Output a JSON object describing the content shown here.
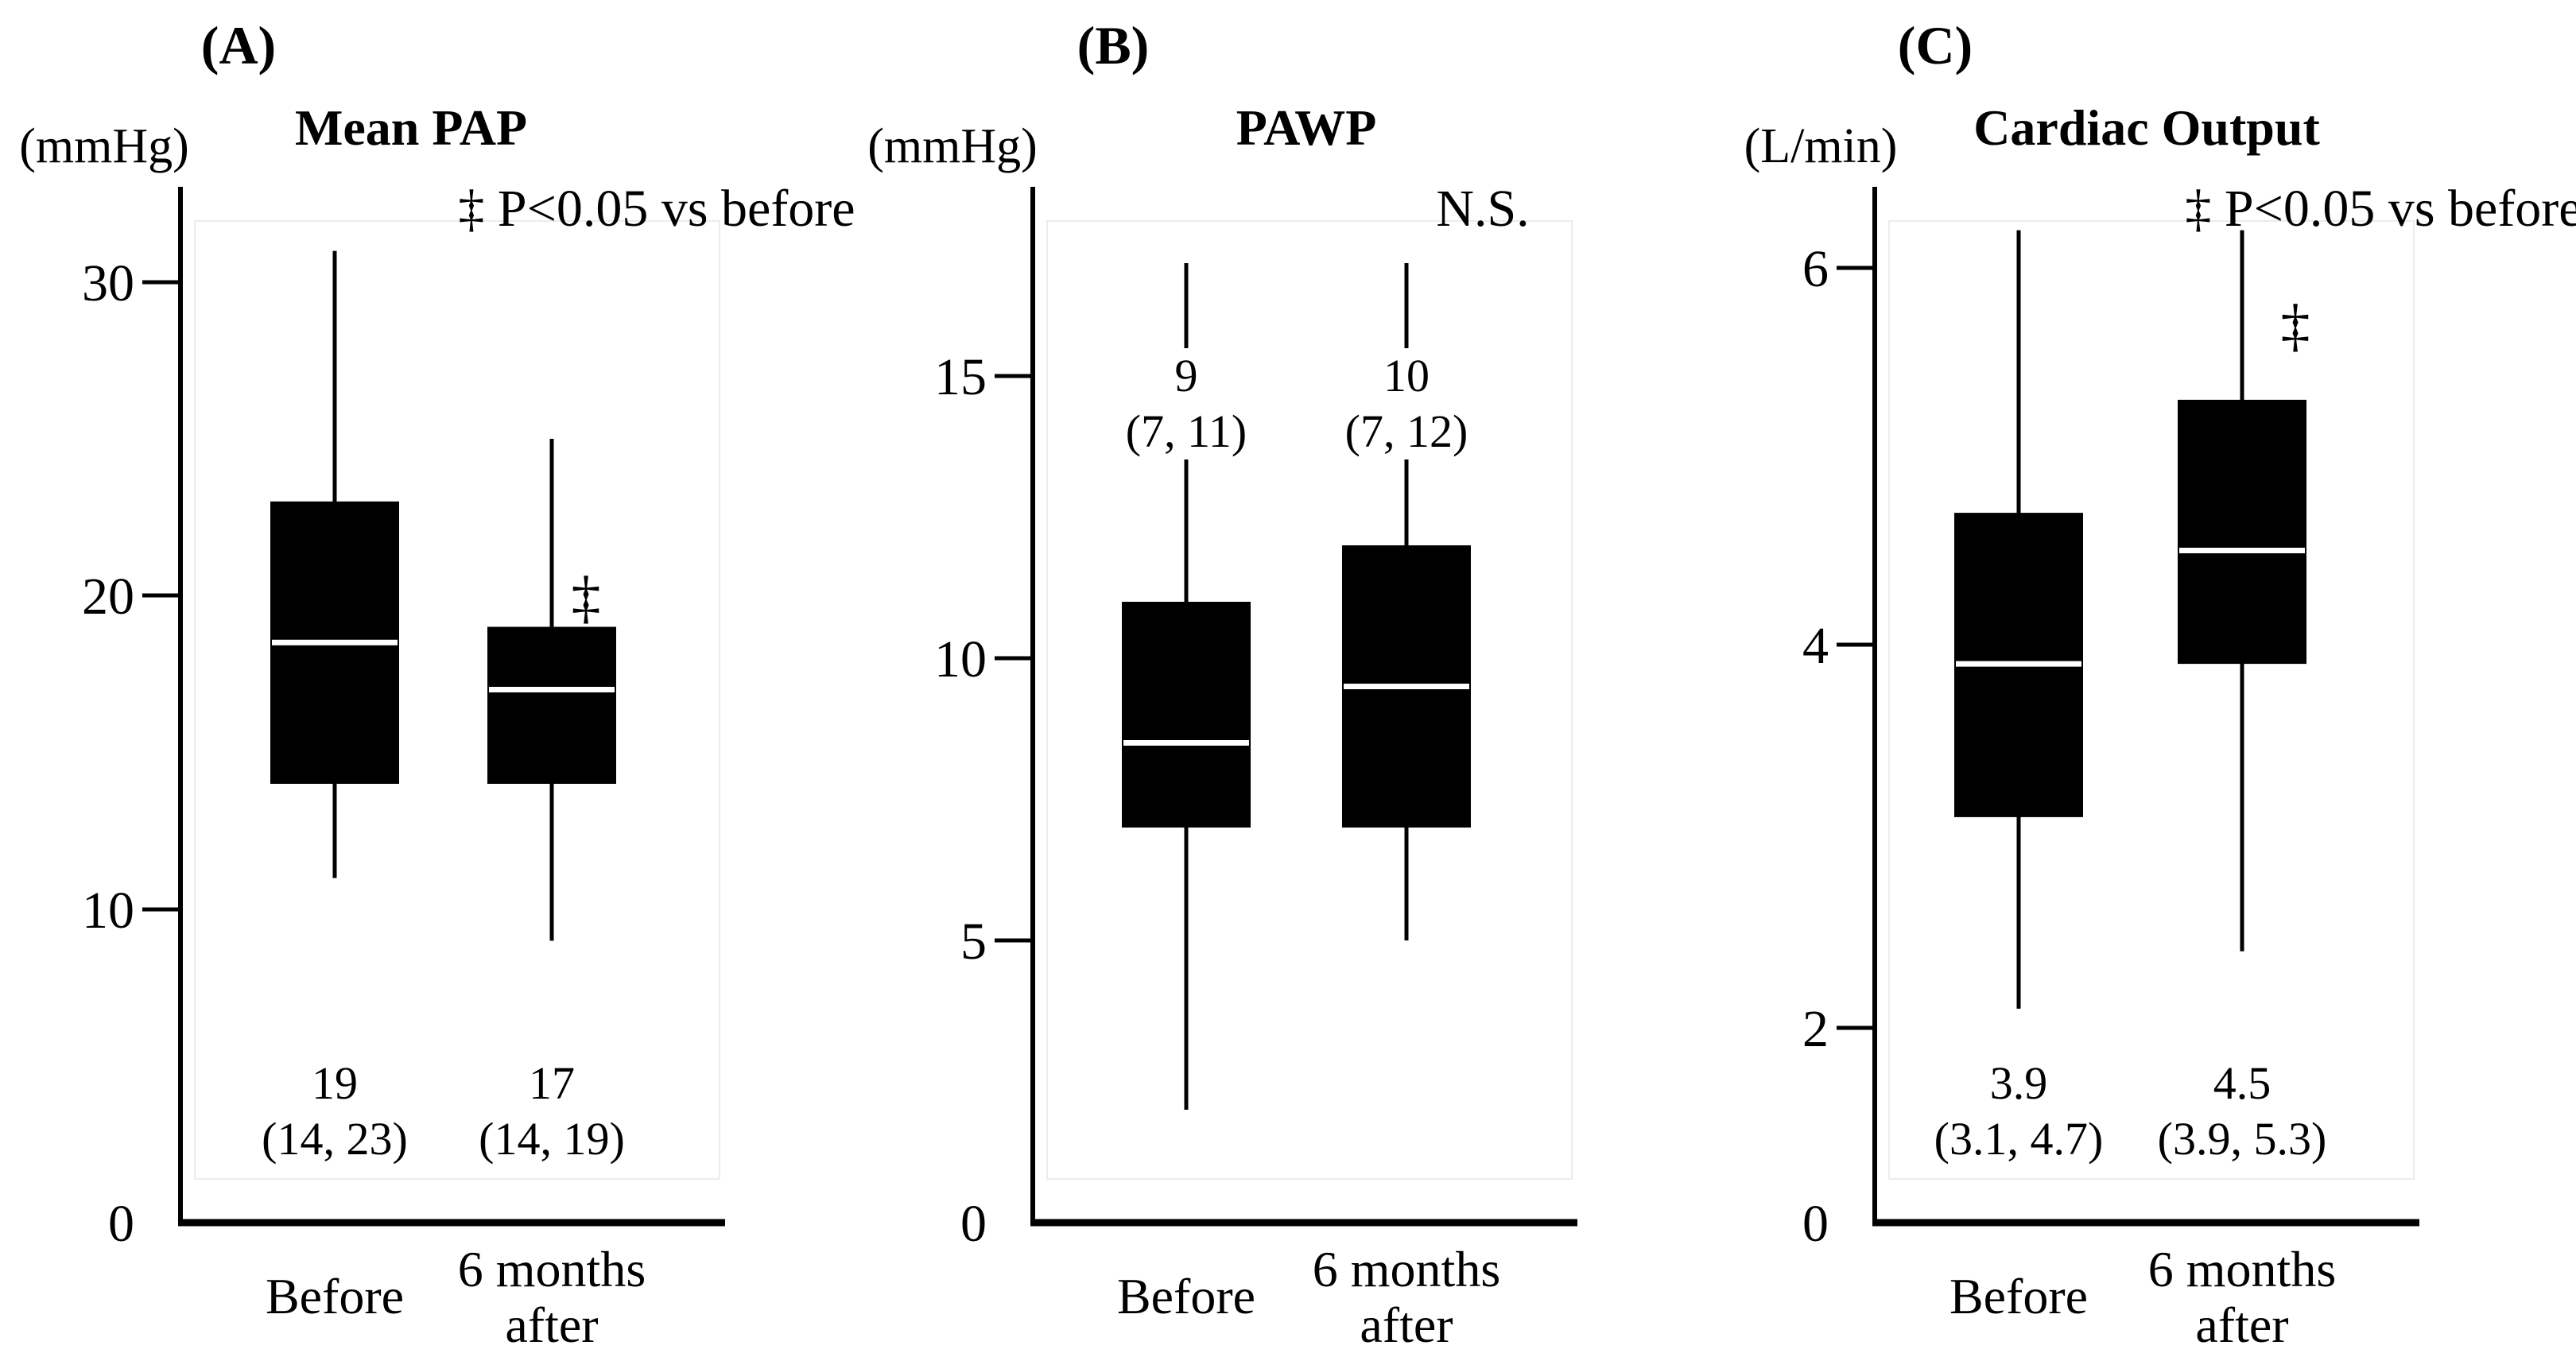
{
  "figure": {
    "background": "#ffffff",
    "text_color": "#000000",
    "box_fill": "#000000",
    "median_line_color": "#ffffff",
    "axis_color": "#000000",
    "plot_area_border_color": "#ececec"
  },
  "chart_data": [
    {
      "type": "box",
      "panel_label": "(A)",
      "title": "Mean PAP",
      "unit": "(mmHg)",
      "annotation": "‡ P<0.05 vs before",
      "yticks": [
        0,
        10,
        20,
        30
      ],
      "ylim": [
        0,
        33
      ],
      "grid": false,
      "categories": [
        "Before",
        "6 months after"
      ],
      "label_position": "below",
      "series": [
        {
          "category": "Before",
          "category_lines": [
            "Before"
          ],
          "whisker_low": 11,
          "q1": 14,
          "median": 19,
          "q3": 23,
          "whisker_high": 31,
          "median_drawn": 18.5,
          "median_label": "19",
          "iqr_label": "(14, 23)",
          "sig_marker": ""
        },
        {
          "category": "6 months after",
          "category_lines": [
            "6 months",
            "after"
          ],
          "whisker_low": 9,
          "q1": 14,
          "median": 17,
          "q3": 19,
          "whisker_high": 25,
          "median_drawn": 17,
          "median_label": "17",
          "iqr_label": "(14, 19)",
          "sig_marker": "‡"
        }
      ]
    },
    {
      "type": "box",
      "panel_label": "(B)",
      "title": "PAWP",
      "unit": "(mmHg)",
      "annotation": "N.S.",
      "yticks": [
        0,
        5,
        10,
        15
      ],
      "ylim": [
        0,
        17.5
      ],
      "grid": false,
      "categories": [
        "Before",
        "6 months after"
      ],
      "label_position": "above",
      "series": [
        {
          "category": "Before",
          "category_lines": [
            "Before"
          ],
          "whisker_low": 2,
          "q1": 7,
          "median": 9,
          "q3": 11,
          "whisker_high": 17,
          "median_drawn": 8.5,
          "median_label": "9",
          "iqr_label": "(7, 11)",
          "sig_marker": ""
        },
        {
          "category": "6 months after",
          "category_lines": [
            "6 months",
            "after"
          ],
          "whisker_low": 5,
          "q1": 7,
          "median": 10,
          "q3": 12,
          "whisker_high": 17,
          "median_drawn": 9.5,
          "median_label": "10",
          "iqr_label": "(7, 12)",
          "sig_marker": ""
        }
      ]
    },
    {
      "type": "box",
      "panel_label": "(C)",
      "title": "Cardiac Output",
      "unit": "(L/min)",
      "annotation": "‡ P<0.05 vs before",
      "yticks": [
        0,
        2,
        4,
        6
      ],
      "ylim": [
        0,
        6.6
      ],
      "grid": false,
      "categories": [
        "Before",
        "6 months after"
      ],
      "label_position": "below",
      "series": [
        {
          "category": "Before",
          "category_lines": [
            "Before"
          ],
          "whisker_low": 2.1,
          "q1": 3.1,
          "median": 3.9,
          "q3": 4.7,
          "whisker_high": 6.2,
          "median_drawn": 3.9,
          "median_label": "3.9",
          "iqr_label": "(3.1, 4.7)",
          "sig_marker": ""
        },
        {
          "category": "6 months after",
          "category_lines": [
            "6 months",
            "after"
          ],
          "whisker_low": 2.4,
          "q1": 3.9,
          "median": 4.5,
          "q3": 5.3,
          "whisker_high": 6.2,
          "median_drawn": 4.5,
          "median_label": "4.5",
          "iqr_label": "(3.9, 5.3)",
          "sig_marker": "‡"
        }
      ]
    }
  ]
}
